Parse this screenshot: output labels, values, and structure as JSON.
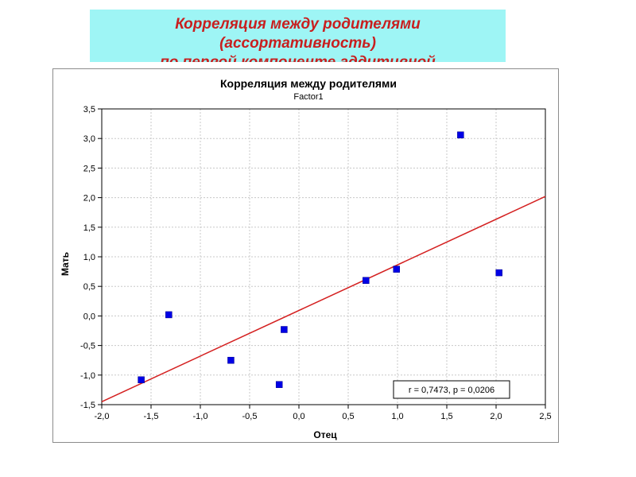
{
  "banner": {
    "line1": "Корреляция между родителями",
    "line2": "(ассортативность)",
    "line3": "по первой компоненте аддитивной"
  },
  "colors": {
    "banner_bg": "#9ef5f5",
    "banner_text": "#c81f1f",
    "points": "#0000e6",
    "fit_line": "#d42020",
    "grid": "#c8c8c8"
  },
  "chart_data": {
    "type": "scatter",
    "title": "Корреляция между родителями",
    "subtitle": "Factor1",
    "xlabel": "Отец",
    "ylabel": "Мать",
    "xlim": [
      -2.0,
      2.5
    ],
    "ylim": [
      -1.5,
      3.5
    ],
    "xticks": [
      -2.0,
      -1.5,
      -1.0,
      -0.5,
      0.0,
      0.5,
      1.0,
      1.5,
      2.0,
      2.5
    ],
    "yticks": [
      -1.5,
      -1.0,
      -0.5,
      0.0,
      0.5,
      1.0,
      1.5,
      2.0,
      2.5,
      3.0,
      3.5
    ],
    "xtick_labels": [
      "-2,0",
      "-1,5",
      "-1,0",
      "-0,5",
      "0,0",
      "0,5",
      "1,0",
      "1,5",
      "2,0",
      "2,5"
    ],
    "ytick_labels": [
      "-1,5",
      "-1,0",
      "-0,5",
      "0,0",
      "0,5",
      "1,0",
      "1,5",
      "2,0",
      "2,5",
      "3,0",
      "3,5"
    ],
    "points": [
      {
        "x": -1.6,
        "y": -1.08
      },
      {
        "x": -1.32,
        "y": 0.02
      },
      {
        "x": -0.69,
        "y": -0.75
      },
      {
        "x": -0.2,
        "y": -1.16
      },
      {
        "x": -0.15,
        "y": -0.23
      },
      {
        "x": 0.68,
        "y": 0.6
      },
      {
        "x": 0.99,
        "y": 0.79
      },
      {
        "x": 1.64,
        "y": 3.06
      },
      {
        "x": 2.03,
        "y": 0.73
      }
    ],
    "fit_line": {
      "x": [
        -2.0,
        2.5
      ],
      "y": [
        -1.45,
        2.02
      ]
    },
    "annotation": "r = 0,7473, p = 0,0206",
    "grid": true
  }
}
